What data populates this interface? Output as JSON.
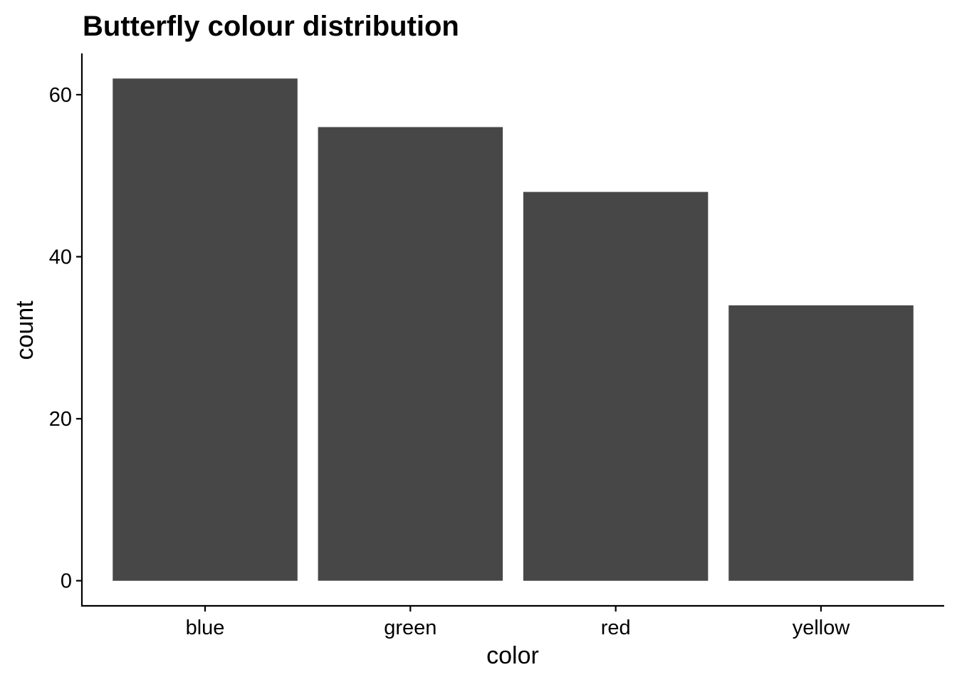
{
  "chart_data": {
    "type": "bar",
    "title": "Butterfly colour distribution",
    "xlabel": "color",
    "ylabel": "count",
    "categories": [
      "blue",
      "green",
      "red",
      "yellow"
    ],
    "values": [
      62,
      56,
      48,
      34
    ],
    "ylim": [
      -3.1,
      65.1
    ],
    "yticks": [
      0,
      20,
      40,
      60
    ],
    "grid": false,
    "legend": "none",
    "bar_color": "#474747",
    "axis_color": "#000000",
    "background": "#ffffff"
  }
}
